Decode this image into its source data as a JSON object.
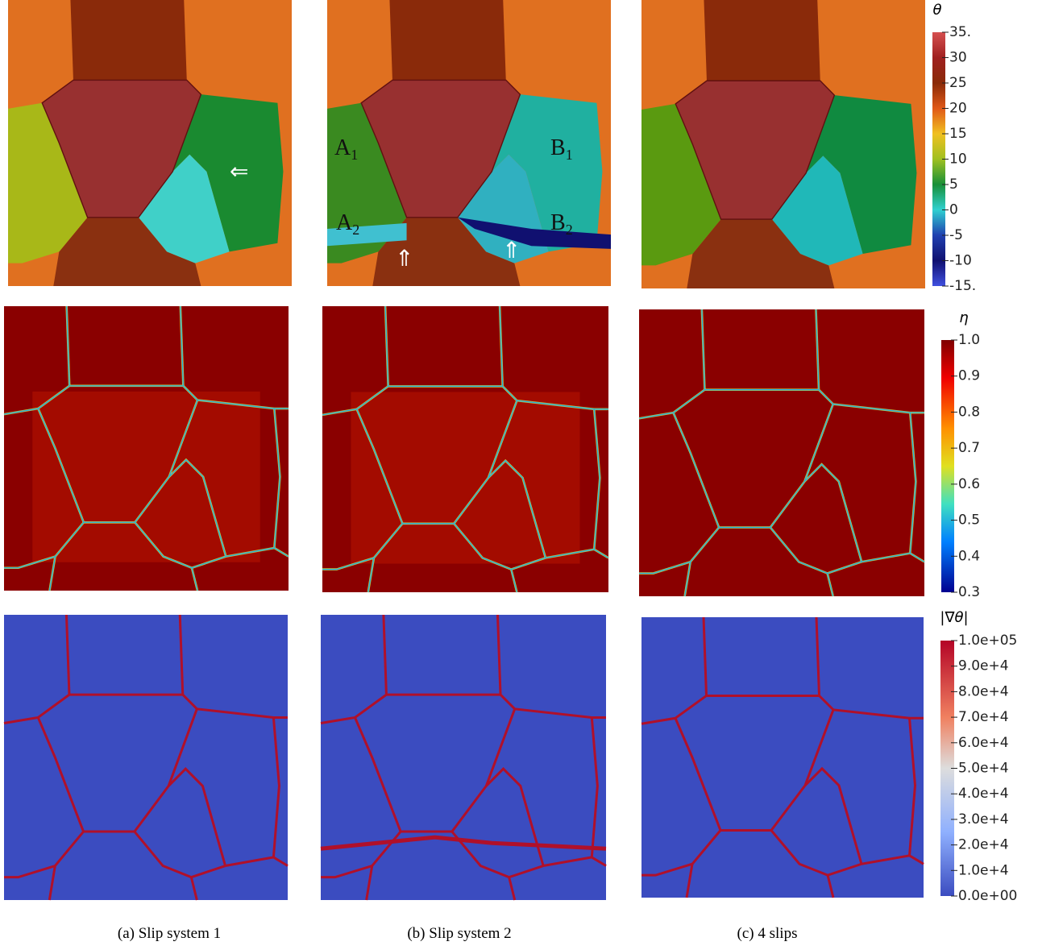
{
  "captions": [
    "(a) Slip system 1",
    "(b) Slip system 2",
    "(c) 4 slips"
  ],
  "annotations": [
    {
      "text": "A",
      "sub": "1"
    },
    {
      "text": "B",
      "sub": "1"
    },
    {
      "text": "A",
      "sub": "2"
    },
    {
      "text": "B",
      "sub": "2"
    },
    {
      "text": "⇐"
    },
    {
      "text": "⇑"
    },
    {
      "text": "⇑"
    }
  ],
  "colorbars": [
    {
      "title": "θ",
      "lim": [
        -15,
        35
      ],
      "ticks": [
        {
          "value": 35,
          "label": "35."
        },
        30,
        25,
        20,
        15,
        10,
        5,
        0,
        -5,
        -10,
        {
          "value": -15,
          "label": "-15."
        }
      ]
    },
    {
      "title": "η",
      "lim": [
        0.3,
        1.0
      ],
      "ticks": [
        {
          "value": 1.0,
          "label": "1.0"
        },
        0.9,
        0.8,
        0.7,
        0.6,
        0.5,
        0.4,
        0.3
      ]
    },
    {
      "title": "|∇θ|",
      "lim": [
        0,
        100000
      ],
      "ticks": [
        {
          "value": 100000,
          "label": "1.0e+05"
        },
        {
          "value": 90000,
          "label": "9.0e+4"
        },
        {
          "value": 80000,
          "label": "8.0e+4"
        },
        {
          "value": 70000,
          "label": "7.0e+4"
        },
        {
          "value": 60000,
          "label": "6.0e+4"
        },
        {
          "value": 50000,
          "label": "5.0e+4"
        },
        {
          "value": 40000,
          "label": "4.0e+4"
        },
        {
          "value": 30000,
          "label": "3.0e+4"
        },
        {
          "value": 20000,
          "label": "2.0e+4"
        },
        {
          "value": 10000,
          "label": "1.0e+4"
        },
        {
          "value": 0,
          "label": "0.0e+00"
        }
      ]
    }
  ]
}
